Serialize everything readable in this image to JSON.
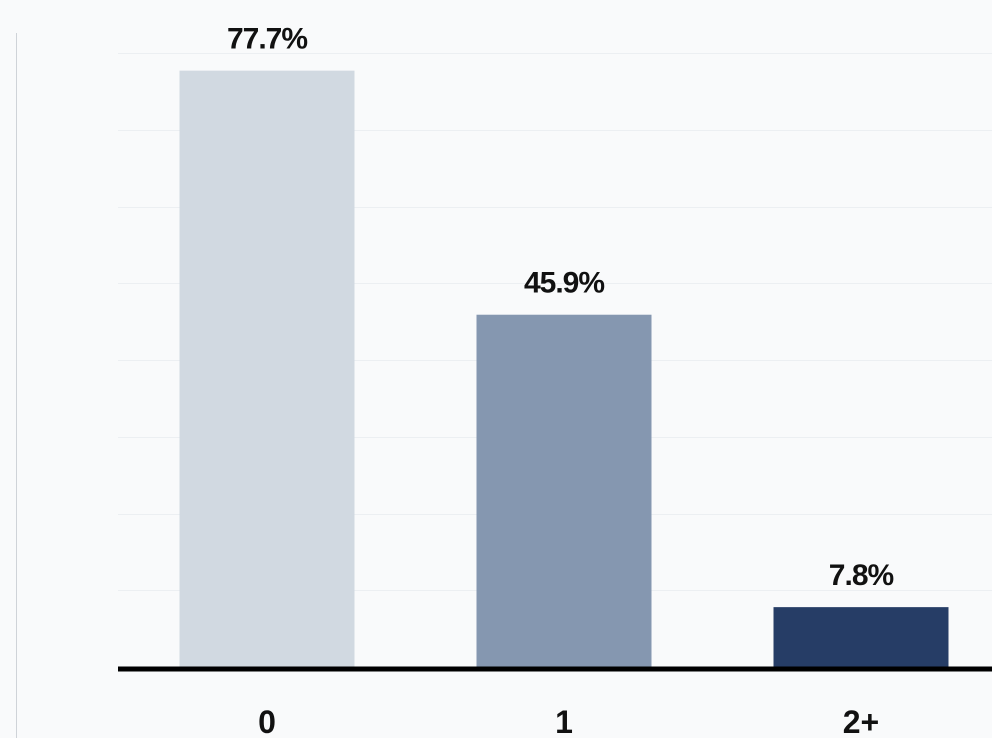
{
  "chart_data": {
    "type": "bar",
    "categories": [
      "0",
      "1",
      "2+"
    ],
    "values": [
      77.7,
      45.9,
      7.8
    ],
    "value_labels": [
      "77.7%",
      "45.9%",
      "7.8%"
    ],
    "colors": [
      "#d1d9e1",
      "#8597b0",
      "#263d66"
    ],
    "title": "",
    "xlabel": "",
    "ylabel": "",
    "ylim": [
      0,
      80
    ],
    "grid": true,
    "gridline_color": "#eceff2",
    "baseline_color": "#000000",
    "legend": "none"
  }
}
